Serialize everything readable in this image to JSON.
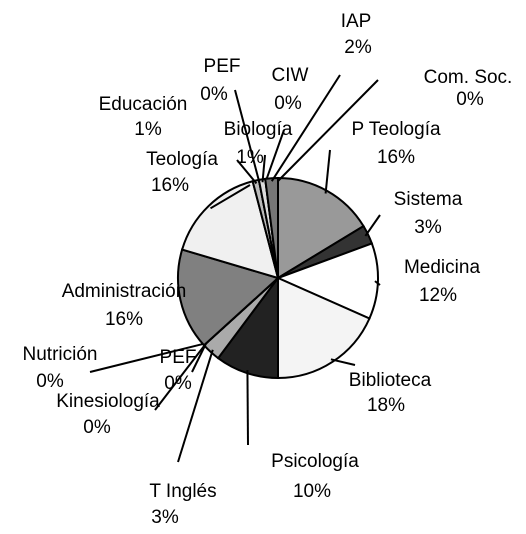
{
  "chart_data": {
    "type": "pie",
    "categories": [
      "P Teología",
      "Sistema",
      "Medicina",
      "Biblioteca",
      "Psicología",
      "T Inglés",
      "PEF",
      "Kinesiología",
      "Nutrición",
      "Administración",
      "Teología",
      "Educación",
      "PEF",
      "Biología",
      "CIW",
      "IAP",
      "Com. Soc."
    ],
    "values": [
      16,
      3,
      12,
      18,
      10,
      3,
      0,
      0,
      0,
      16,
      16,
      1,
      0,
      1,
      0,
      2,
      0
    ],
    "value_labels": [
      "16%",
      "3%",
      "12%",
      "18%",
      "10%",
      "3%",
      "0%",
      "0%",
      "0%",
      "16%",
      "16%",
      "1%",
      "0%",
      "1%",
      "0%",
      "2%",
      "0%"
    ],
    "colors": [
      "#999999",
      "#333333",
      "#ffffff",
      "#f4f4f4",
      "#222222",
      "#aaaaaa",
      "#cccccc",
      "#888888",
      "#555555",
      "#808080",
      "#f0f0f0",
      "#bbbbbb",
      "#666666",
      "#dddddd",
      "#444444",
      "#777777",
      "#e0e0e0"
    ]
  }
}
